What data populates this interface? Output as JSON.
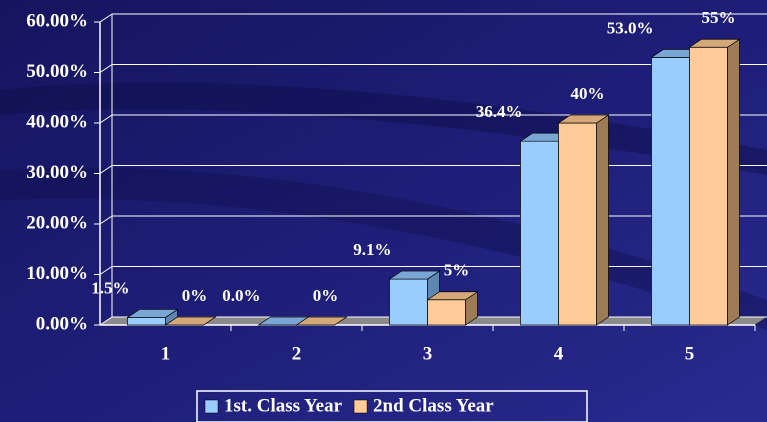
{
  "chart_data": {
    "type": "bar3d",
    "categories": [
      "1",
      "2",
      "3",
      "4",
      "5"
    ],
    "series": [
      {
        "name": "1st. Class Year",
        "color": "#99ccff",
        "values": [
          1.5,
          0.0,
          9.1,
          36.4,
          53.0
        ],
        "value_labels": [
          "1.5%",
          "0.0%",
          "9.1%",
          "36.4%",
          "53.0%"
        ]
      },
      {
        "name": "2nd Class Year",
        "color": "#ffcc99",
        "values": [
          0,
          0,
          5,
          40,
          55
        ],
        "value_labels": [
          "0%",
          "0%",
          "5%",
          "40%",
          "55%"
        ]
      }
    ],
    "ylim": [
      0,
      60
    ],
    "yticks": [
      {
        "value": 0,
        "label": "0.00%"
      },
      {
        "value": 10,
        "label": "10.00%"
      },
      {
        "value": 20,
        "label": "20.00%"
      },
      {
        "value": 30,
        "label": "30.00%"
      },
      {
        "value": 40,
        "label": "40.00%"
      },
      {
        "value": 50,
        "label": "50.00%"
      },
      {
        "value": 60,
        "label": "60.00%"
      }
    ],
    "grid": true,
    "legend": "bottom"
  }
}
